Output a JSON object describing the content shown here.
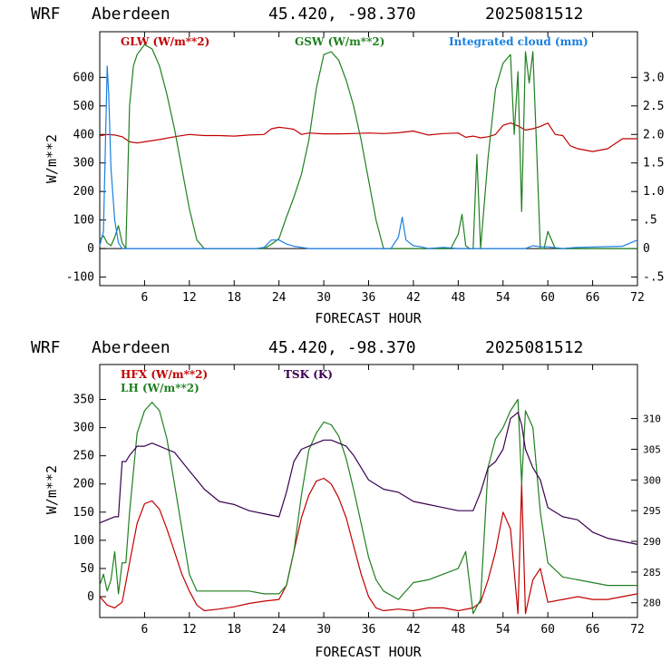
{
  "chart_data": [
    {
      "type": "line",
      "header": {
        "model": "WRF",
        "site": "Aberdeen",
        "coords": "45.420, -98.370",
        "init": "2025081512"
      },
      "xlabel": "FORECAST HOUR",
      "ylabel": "W/m**2",
      "xlim": [
        0,
        72
      ],
      "ylim": [
        -130,
        760
      ],
      "xticks": [
        6,
        12,
        18,
        24,
        30,
        36,
        42,
        48,
        54,
        60,
        66,
        72
      ],
      "yticks_left": [
        -100,
        0,
        100,
        200,
        300,
        400,
        500,
        600
      ],
      "y2lim": [
        -0.65,
        3.8
      ],
      "yticks_right": [
        "-.5",
        "0",
        ".5",
        "1.0",
        "1.5",
        "2.0",
        "2.5",
        "3.0"
      ],
      "yticks_right_values": [
        -0.5,
        0,
        0.5,
        1.0,
        1.5,
        2.0,
        2.5,
        3.0
      ],
      "legend": [
        "GLW (W/m**2)",
        "GSW (W/m**2)",
        "Integrated cloud (mm)"
      ],
      "colors": {
        "GLW": "#c00000",
        "GSW": "#208020",
        "cloud": "#1a7fe0"
      },
      "series": [
        {
          "name": "GLW (W/m**2)",
          "axis": "left",
          "x": [
            0,
            1,
            2,
            3,
            4,
            5,
            6,
            8,
            10,
            12,
            14,
            16,
            18,
            20,
            22,
            23,
            24,
            25,
            26,
            27,
            28,
            30,
            32,
            34,
            36,
            38,
            40,
            42,
            44,
            46,
            48,
            49,
            50,
            51,
            52,
            53,
            54,
            55,
            56,
            57,
            58,
            59,
            60,
            61,
            62,
            63,
            64,
            66,
            68,
            70,
            72
          ],
          "values": [
            395,
            400,
            398,
            392,
            374,
            370,
            374,
            382,
            392,
            400,
            396,
            396,
            394,
            398,
            400,
            420,
            425,
            422,
            418,
            400,
            405,
            402,
            402,
            403,
            405,
            403,
            406,
            412,
            398,
            403,
            405,
            390,
            394,
            388,
            392,
            400,
            432,
            440,
            430,
            415,
            420,
            428,
            440,
            400,
            396,
            360,
            350,
            340,
            350,
            385,
            385
          ]
        },
        {
          "name": "GSW (W/m**2)",
          "axis": "left",
          "x": [
            0,
            0.5,
            1,
            1.5,
            2,
            2.5,
            3,
            3.5,
            4,
            4.5,
            5,
            6,
            7,
            8,
            9,
            10,
            11,
            12,
            13,
            14,
            15,
            16,
            18,
            20,
            22,
            23,
            24,
            25,
            26,
            27,
            28,
            29,
            30,
            31,
            32,
            33,
            34,
            35,
            36,
            37,
            38,
            39,
            40,
            41,
            42,
            44,
            45,
            46,
            47,
            48,
            48.5,
            49,
            49.5,
            50,
            50.5,
            51,
            52,
            53,
            54,
            55,
            55.5,
            56,
            56.5,
            57,
            57.5,
            58,
            58.5,
            59,
            59.5,
            60,
            61,
            62,
            64,
            66,
            68,
            70,
            72
          ],
          "values": [
            30,
            45,
            20,
            10,
            40,
            80,
            20,
            0,
            500,
            640,
            680,
            715,
            700,
            640,
            540,
            420,
            280,
            140,
            30,
            0,
            0,
            0,
            0,
            0,
            0,
            15,
            35,
            110,
            180,
            260,
            380,
            560,
            680,
            690,
            660,
            590,
            500,
            380,
            240,
            100,
            0,
            0,
            0,
            0,
            0,
            0,
            0,
            0,
            0,
            50,
            120,
            10,
            0,
            0,
            330,
            0,
            320,
            560,
            650,
            680,
            400,
            620,
            130,
            690,
            580,
            690,
            350,
            0,
            0,
            60,
            0,
            0,
            0,
            0,
            0,
            0,
            0
          ]
        },
        {
          "name": "Integrated cloud (mm)",
          "axis": "right",
          "x": [
            0,
            0.5,
            1,
            1.2,
            1.5,
            2,
            2.5,
            3,
            3.5,
            4,
            6,
            10,
            16,
            20,
            21,
            22,
            23,
            24,
            25,
            26,
            27,
            28,
            30,
            36,
            39,
            40,
            40.5,
            41,
            42,
            43,
            44,
            46,
            48,
            50,
            54,
            57,
            58,
            59,
            60,
            62,
            64,
            70,
            72
          ],
          "values": [
            0.05,
            0.3,
            3.2,
            2.7,
            1.4,
            0.5,
            0.1,
            0,
            0,
            0,
            0,
            0,
            0,
            0,
            0,
            0.02,
            0.15,
            0.15,
            0.08,
            0.04,
            0.02,
            0,
            0,
            0,
            0,
            0.2,
            0.55,
            0.15,
            0.05,
            0.03,
            0,
            0.02,
            0,
            0,
            0,
            0,
            0.05,
            0.03,
            0.03,
            0,
            0.02,
            0.04,
            0.15
          ]
        }
      ]
    },
    {
      "type": "line",
      "header": {
        "model": "WRF",
        "site": "Aberdeen",
        "coords": "45.420, -98.370",
        "init": "2025081512"
      },
      "xlabel": "FORECAST HOUR",
      "ylabel": "W/m**2",
      "xlim": [
        0,
        72
      ],
      "ylim": [
        -37,
        412
      ],
      "xticks": [
        6,
        12,
        18,
        24,
        30,
        36,
        42,
        48,
        54,
        60,
        66,
        72
      ],
      "yticks_left": [
        0,
        50,
        100,
        150,
        200,
        250,
        300,
        350
      ],
      "y2lim": [
        277.6,
        318.8
      ],
      "yticks_right": [
        280,
        285,
        290,
        295,
        300,
        305,
        310
      ],
      "legend": [
        "HFX (W/m**2)",
        "LH (W/m**2)",
        "TSK (K)"
      ],
      "colors": {
        "HFX": "#c00000",
        "LH": "#208020",
        "TSK": "#3a0050"
      },
      "series": [
        {
          "name": "HFX (W/m**2)",
          "axis": "left",
          "x": [
            0,
            1,
            2,
            3,
            4,
            5,
            6,
            7,
            8,
            9,
            10,
            11,
            12,
            13,
            14,
            16,
            18,
            20,
            22,
            24,
            25,
            26,
            27,
            28,
            29,
            30,
            31,
            32,
            33,
            34,
            35,
            36,
            37,
            38,
            40,
            42,
            44,
            46,
            48,
            50,
            51,
            52,
            53,
            54,
            55,
            56,
            56.5,
            57,
            58,
            59,
            60,
            62,
            64,
            66,
            68,
            70,
            72
          ],
          "values": [
            0,
            -15,
            -20,
            -10,
            60,
            130,
            165,
            170,
            155,
            120,
            80,
            40,
            10,
            -15,
            -25,
            -22,
            -18,
            -12,
            -8,
            -5,
            20,
            80,
            140,
            180,
            205,
            210,
            200,
            175,
            140,
            90,
            40,
            0,
            -20,
            -25,
            -22,
            -25,
            -20,
            -20,
            -25,
            -20,
            -10,
            30,
            80,
            150,
            120,
            -30,
            200,
            -30,
            30,
            50,
            -10,
            -5,
            0,
            -5,
            -5,
            0,
            5
          ]
        },
        {
          "name": "LH (W/m**2)",
          "axis": "left",
          "x": [
            0,
            0.5,
            1,
            1.5,
            2,
            2.5,
            3,
            3.5,
            4,
            5,
            6,
            7,
            8,
            9,
            10,
            11,
            12,
            13,
            14,
            16,
            18,
            20,
            22,
            24,
            25,
            26,
            27,
            28,
            29,
            30,
            31,
            32,
            33,
            34,
            35,
            36,
            37,
            38,
            40,
            42,
            44,
            46,
            48,
            49,
            50,
            51,
            52,
            53,
            54,
            55,
            56,
            56.5,
            57,
            58,
            59,
            60,
            62,
            64,
            66,
            68,
            70,
            72
          ],
          "values": [
            20,
            40,
            10,
            30,
            80,
            5,
            60,
            60,
            150,
            290,
            330,
            345,
            330,
            280,
            200,
            120,
            40,
            10,
            10,
            10,
            10,
            10,
            5,
            5,
            20,
            80,
            180,
            260,
            290,
            310,
            305,
            285,
            245,
            190,
            130,
            70,
            30,
            10,
            -5,
            25,
            30,
            40,
            50,
            80,
            -30,
            -5,
            230,
            280,
            300,
            330,
            350,
            200,
            330,
            300,
            150,
            60,
            35,
            30,
            25,
            20,
            20,
            20
          ]
        },
        {
          "name": "TSK (K)",
          "axis": "right",
          "x": [
            0,
            1,
            2,
            2.5,
            3,
            3.5,
            4,
            5,
            6,
            7,
            8,
            9,
            10,
            11,
            12,
            13,
            14,
            16,
            18,
            20,
            22,
            24,
            25,
            26,
            27,
            28,
            29,
            30,
            31,
            32,
            33,
            34,
            35,
            36,
            38,
            40,
            42,
            44,
            46,
            48,
            50,
            51,
            52,
            53,
            54,
            55,
            56,
            56.5,
            57,
            58,
            59,
            60,
            62,
            64,
            66,
            68,
            70,
            72
          ],
          "values": [
            293,
            293.5,
            294,
            294,
            303,
            303,
            304,
            305.5,
            305.5,
            306,
            305.5,
            305,
            304.5,
            303,
            301.5,
            300,
            298.5,
            296.5,
            296,
            295,
            294.5,
            294,
            298,
            303,
            305,
            305.5,
            306,
            306.5,
            306.5,
            306,
            305.5,
            304,
            302,
            300,
            298.5,
            298,
            296.5,
            296,
            295.5,
            295,
            295,
            298,
            302,
            303,
            305,
            310,
            311,
            309,
            305,
            302,
            300,
            295.5,
            294,
            293.5,
            291.5,
            290.5,
            290,
            289.5
          ]
        }
      ]
    }
  ]
}
